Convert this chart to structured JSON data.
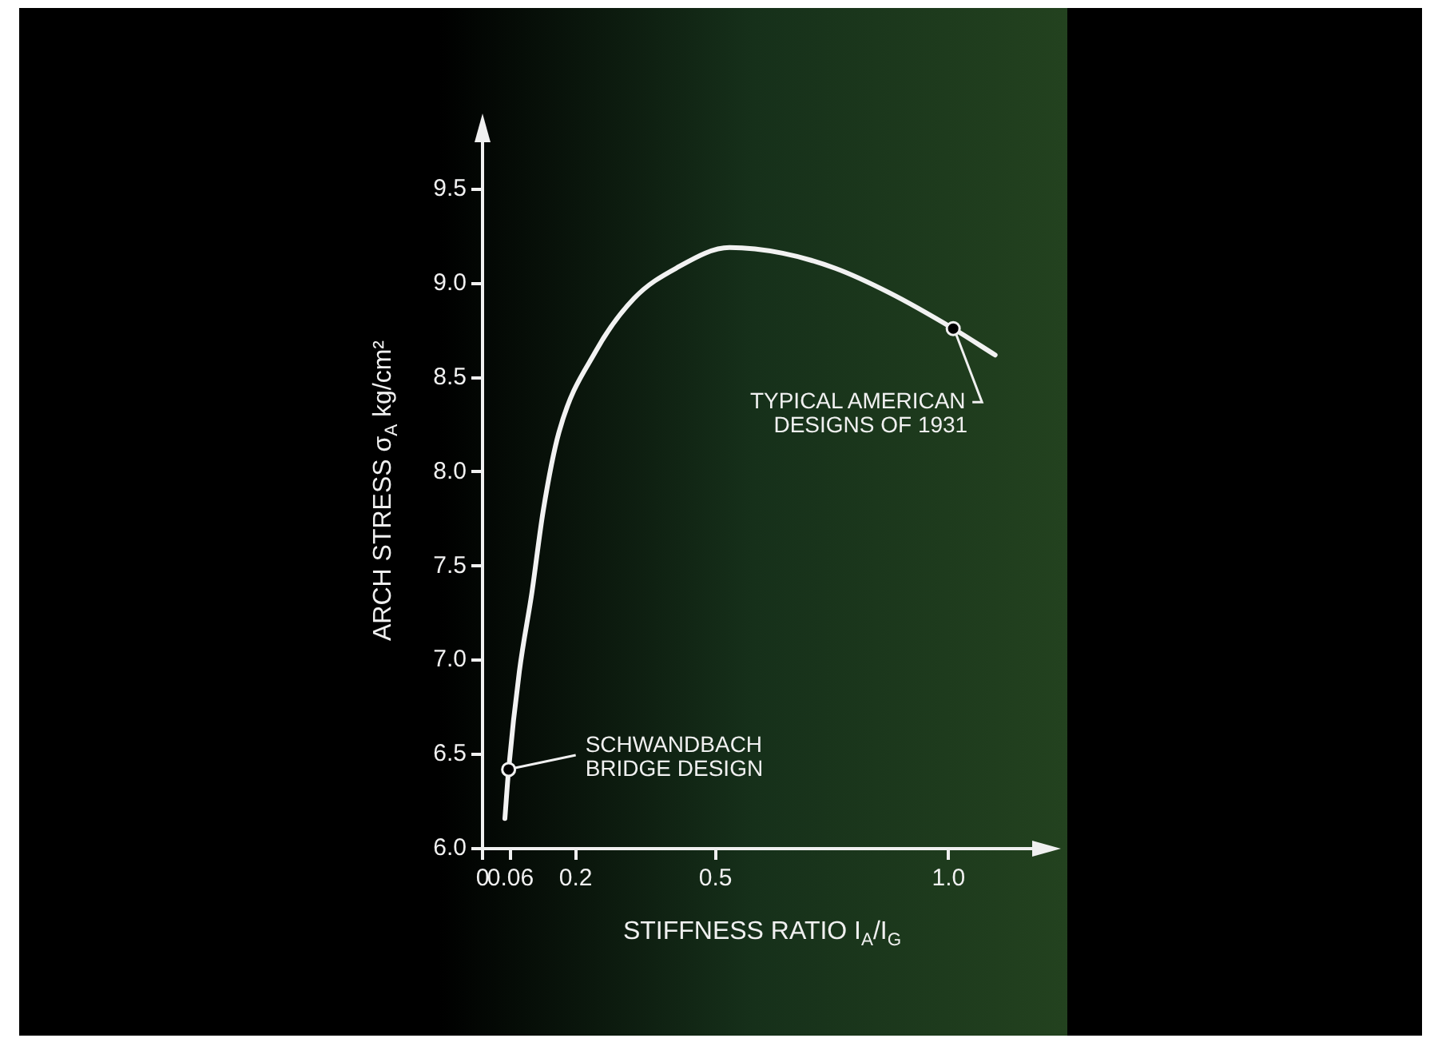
{
  "chart_data": {
    "type": "line",
    "xlabel": "STIFFNESS RATIO I$_{A}$/I$_{G}$",
    "ylabel": "ARCH STRESS σ$_{A}$ kg/cm²",
    "x": [
      0.048,
      0.056,
      0.079,
      0.106,
      0.13,
      0.164,
      0.243,
      0.325,
      0.415,
      0.53,
      0.644,
      0.757,
      0.873,
      1.01,
      1.1
    ],
    "series": [
      {
        "color": "#f2f2f2",
        "values": [
          6.16,
          6.42,
          6.94,
          7.36,
          7.79,
          8.21,
          8.64,
          8.92,
          9.08,
          9.19,
          9.16,
          9.08,
          8.95,
          8.76,
          8.62
        ]
      }
    ],
    "xlim": [
      0,
      1.2
    ],
    "xticks": [
      0,
      0.06,
      0.2,
      0.5,
      {
        "value": 1,
        "label": "1.0"
      }
    ],
    "ylim": [
      6,
      9.8
    ],
    "yticks": [
      {
        "value": 6,
        "label": "6.0"
      },
      {
        "value": 6.5,
        "label": "6.5"
      },
      {
        "value": 7,
        "label": "7.0"
      },
      {
        "value": 7.5,
        "label": "7.5"
      },
      {
        "value": 8,
        "label": "8.0"
      },
      {
        "value": 8.5,
        "label": "8.5"
      },
      {
        "value": 9,
        "label": "9.0"
      },
      {
        "value": 9.5,
        "label": "9.5"
      }
    ],
    "marker": "none",
    "line_style": "solid",
    "legend": false,
    "annotations": [
      {
        "text": "SCHWANDBACH\nBRIDGE DESIGN",
        "x": 0.056,
        "y": 6.42
      },
      {
        "text": "TYPICAL AMERICAN\nDESIGNS OF 1931",
        "x": 1.01,
        "y": 8.76
      }
    ]
  }
}
